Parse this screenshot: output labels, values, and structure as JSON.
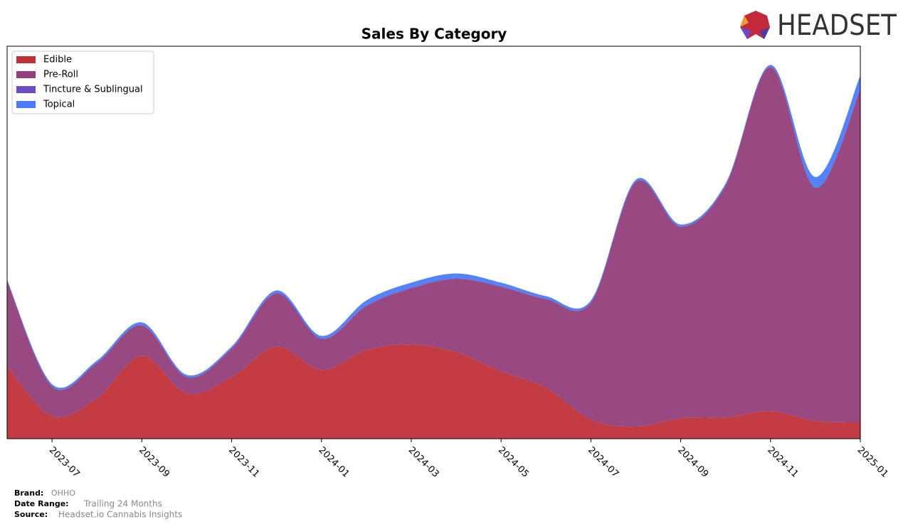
{
  "chart_data": {
    "type": "stacked_area",
    "title": "Sales By Category",
    "x": [
      "2023-06",
      "2023-07",
      "2023-08",
      "2023-09",
      "2023-10",
      "2023-11",
      "2023-12",
      "2024-01",
      "2024-02",
      "2024-03",
      "2024-04",
      "2024-05",
      "2024-06",
      "2024-07",
      "2024-08",
      "2024-09",
      "2024-10",
      "2024-11",
      "2024-12",
      "2025-01"
    ],
    "xlim": [
      "2023-06",
      "2025-01"
    ],
    "xticks": [
      "2023-07",
      "2023-09",
      "2023-11",
      "2024-01",
      "2024-03",
      "2024-05",
      "2024-07",
      "2024-09",
      "2024-11",
      "2025-01"
    ],
    "legend": "upper left",
    "series": [
      {
        "name": "Edible",
        "color": "#c0323a",
        "values": [
          102,
          32,
          57,
          117,
          64,
          87,
          130,
          97,
          125,
          133,
          122,
          95,
          72,
          27,
          17,
          29,
          30,
          39,
          25,
          23
        ]
      },
      {
        "name": "Pre-Roll",
        "color": "#943f7a",
        "values": [
          120,
          42,
          50,
          43,
          23,
          40,
          75,
          44,
          62,
          79,
          103,
          119,
          125,
          165,
          345,
          270,
          327,
          485,
          329,
          469
        ]
      },
      {
        "name": "Tincture & Sublingual",
        "color": "#6a4bc4",
        "values": [
          0,
          0,
          0,
          0,
          0,
          0,
          0,
          0,
          1,
          1,
          1,
          1,
          0,
          0,
          0,
          0,
          0,
          0,
          0,
          0
        ]
      },
      {
        "name": "Topical",
        "color": "#4a7bfa",
        "values": [
          2,
          3,
          3,
          4,
          3,
          3,
          4,
          4,
          7,
          7,
          7,
          5,
          4,
          3,
          3,
          3,
          3,
          3,
          15,
          20
        ]
      }
    ]
  },
  "logo": "HEADSET",
  "footer": {
    "brand_label": "Brand:",
    "brand": "OHHO",
    "range_label": "Date Range:",
    "range": "Trailing 24 Months",
    "source_label": "Source:",
    "source": "Headset.io Cannabis Insights"
  }
}
